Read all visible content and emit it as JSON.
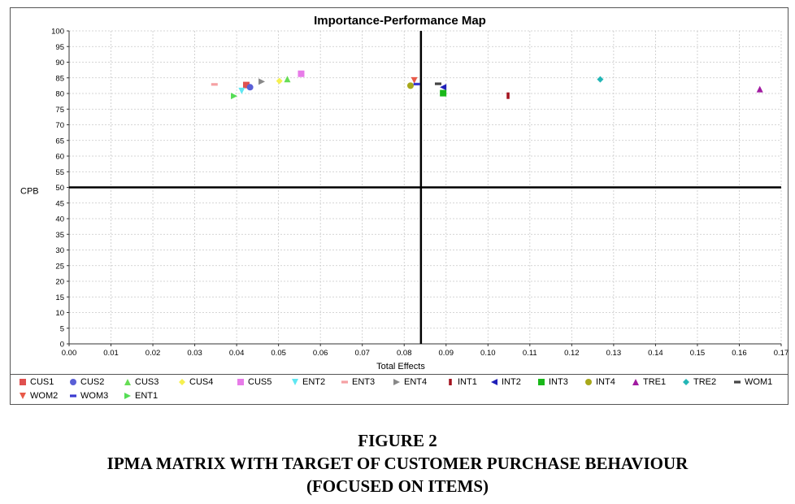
{
  "chart_data": {
    "type": "scatter",
    "title": "Importance-Performance Map",
    "xlabel": "Total Effects",
    "ylabel": "CPB",
    "xlim": [
      0.0,
      0.17
    ],
    "ylim": [
      0,
      100
    ],
    "x_ticks": [
      "0.00",
      "0.01",
      "0.02",
      "0.03",
      "0.04",
      "0.05",
      "0.06",
      "0.07",
      "0.08",
      "0.09",
      "0.10",
      "0.11",
      "0.12",
      "0.13",
      "0.14",
      "0.15",
      "0.16",
      "0.17"
    ],
    "y_ticks": [
      "0",
      "5",
      "10",
      "15",
      "20",
      "25",
      "30",
      "35",
      "40",
      "45",
      "50",
      "55",
      "60",
      "65",
      "70",
      "75",
      "80",
      "85",
      "90",
      "95",
      "100"
    ],
    "grid": true,
    "reference_lines": {
      "x": 0.084,
      "y": 50
    },
    "legend_position": "bottom",
    "series": [
      {
        "name": "CUS1",
        "marker": "square",
        "color": "#e0504f",
        "points": [
          [
            0.0423,
            82.7
          ]
        ]
      },
      {
        "name": "CUS2",
        "marker": "circle",
        "color": "#5a5fd6",
        "points": [
          [
            0.0432,
            82.0
          ]
        ]
      },
      {
        "name": "CUS3",
        "marker": "triangle-up",
        "color": "#66dd55",
        "points": [
          [
            0.0521,
            84.6
          ]
        ]
      },
      {
        "name": "CUS4",
        "marker": "diamond",
        "color": "#f6f04f",
        "points": [
          [
            0.0502,
            84.0
          ]
        ]
      },
      {
        "name": "CUS5",
        "marker": "square",
        "color": "#e77be8",
        "points": [
          [
            0.0554,
            86.3
          ]
        ]
      },
      {
        "name": "ENT2",
        "marker": "triangle-down",
        "color": "#5fe7f2",
        "points": [
          [
            0.0412,
            80.8
          ]
        ]
      },
      {
        "name": "ENT3",
        "marker": "dash",
        "color": "#f5a0a3",
        "points": [
          [
            0.0347,
            82.9
          ]
        ]
      },
      {
        "name": "ENT4",
        "marker": "triangle-right",
        "color": "#888888",
        "points": [
          [
            0.046,
            83.8
          ]
        ]
      },
      {
        "name": "INT1",
        "marker": "bar",
        "color": "#a3131e",
        "points": [
          [
            0.1048,
            79.3
          ]
        ]
      },
      {
        "name": "INT2",
        "marker": "triangle-left",
        "color": "#1f1fb8",
        "points": [
          [
            0.0893,
            82.0
          ]
        ]
      },
      {
        "name": "INT3",
        "marker": "square",
        "color": "#19b819",
        "points": [
          [
            0.0893,
            80.1
          ]
        ]
      },
      {
        "name": "INT4",
        "marker": "circle",
        "color": "#a8a81a",
        "points": [
          [
            0.0815,
            82.5
          ]
        ]
      },
      {
        "name": "TRE1",
        "marker": "triangle-up",
        "color": "#a11aa1",
        "points": [
          [
            0.1649,
            81.4
          ]
        ]
      },
      {
        "name": "TRE2",
        "marker": "diamond",
        "color": "#23b6b6",
        "points": [
          [
            0.1268,
            84.5
          ]
        ]
      },
      {
        "name": "WOM1",
        "marker": "dash",
        "color": "#444444",
        "points": [
          [
            0.0881,
            83.1
          ]
        ]
      },
      {
        "name": "WOM2",
        "marker": "triangle-down",
        "color": "#e85a49",
        "points": [
          [
            0.0824,
            84.2
          ]
        ]
      },
      {
        "name": "WOM3",
        "marker": "dash",
        "color": "#3a3ad0",
        "points": [
          [
            0.083,
            83.0
          ]
        ]
      },
      {
        "name": "ENT1",
        "marker": "triangle-right",
        "color": "#55dd55",
        "points": [
          [
            0.0394,
            79.2
          ]
        ]
      }
    ]
  },
  "caption": {
    "line1": "FIGURE 2",
    "line2": "IPMA MATRIX WITH TARGET OF CUSTOMER PURCHASE BEHAVIOUR",
    "line3": "(FOCUSED ON ITEMS)"
  }
}
